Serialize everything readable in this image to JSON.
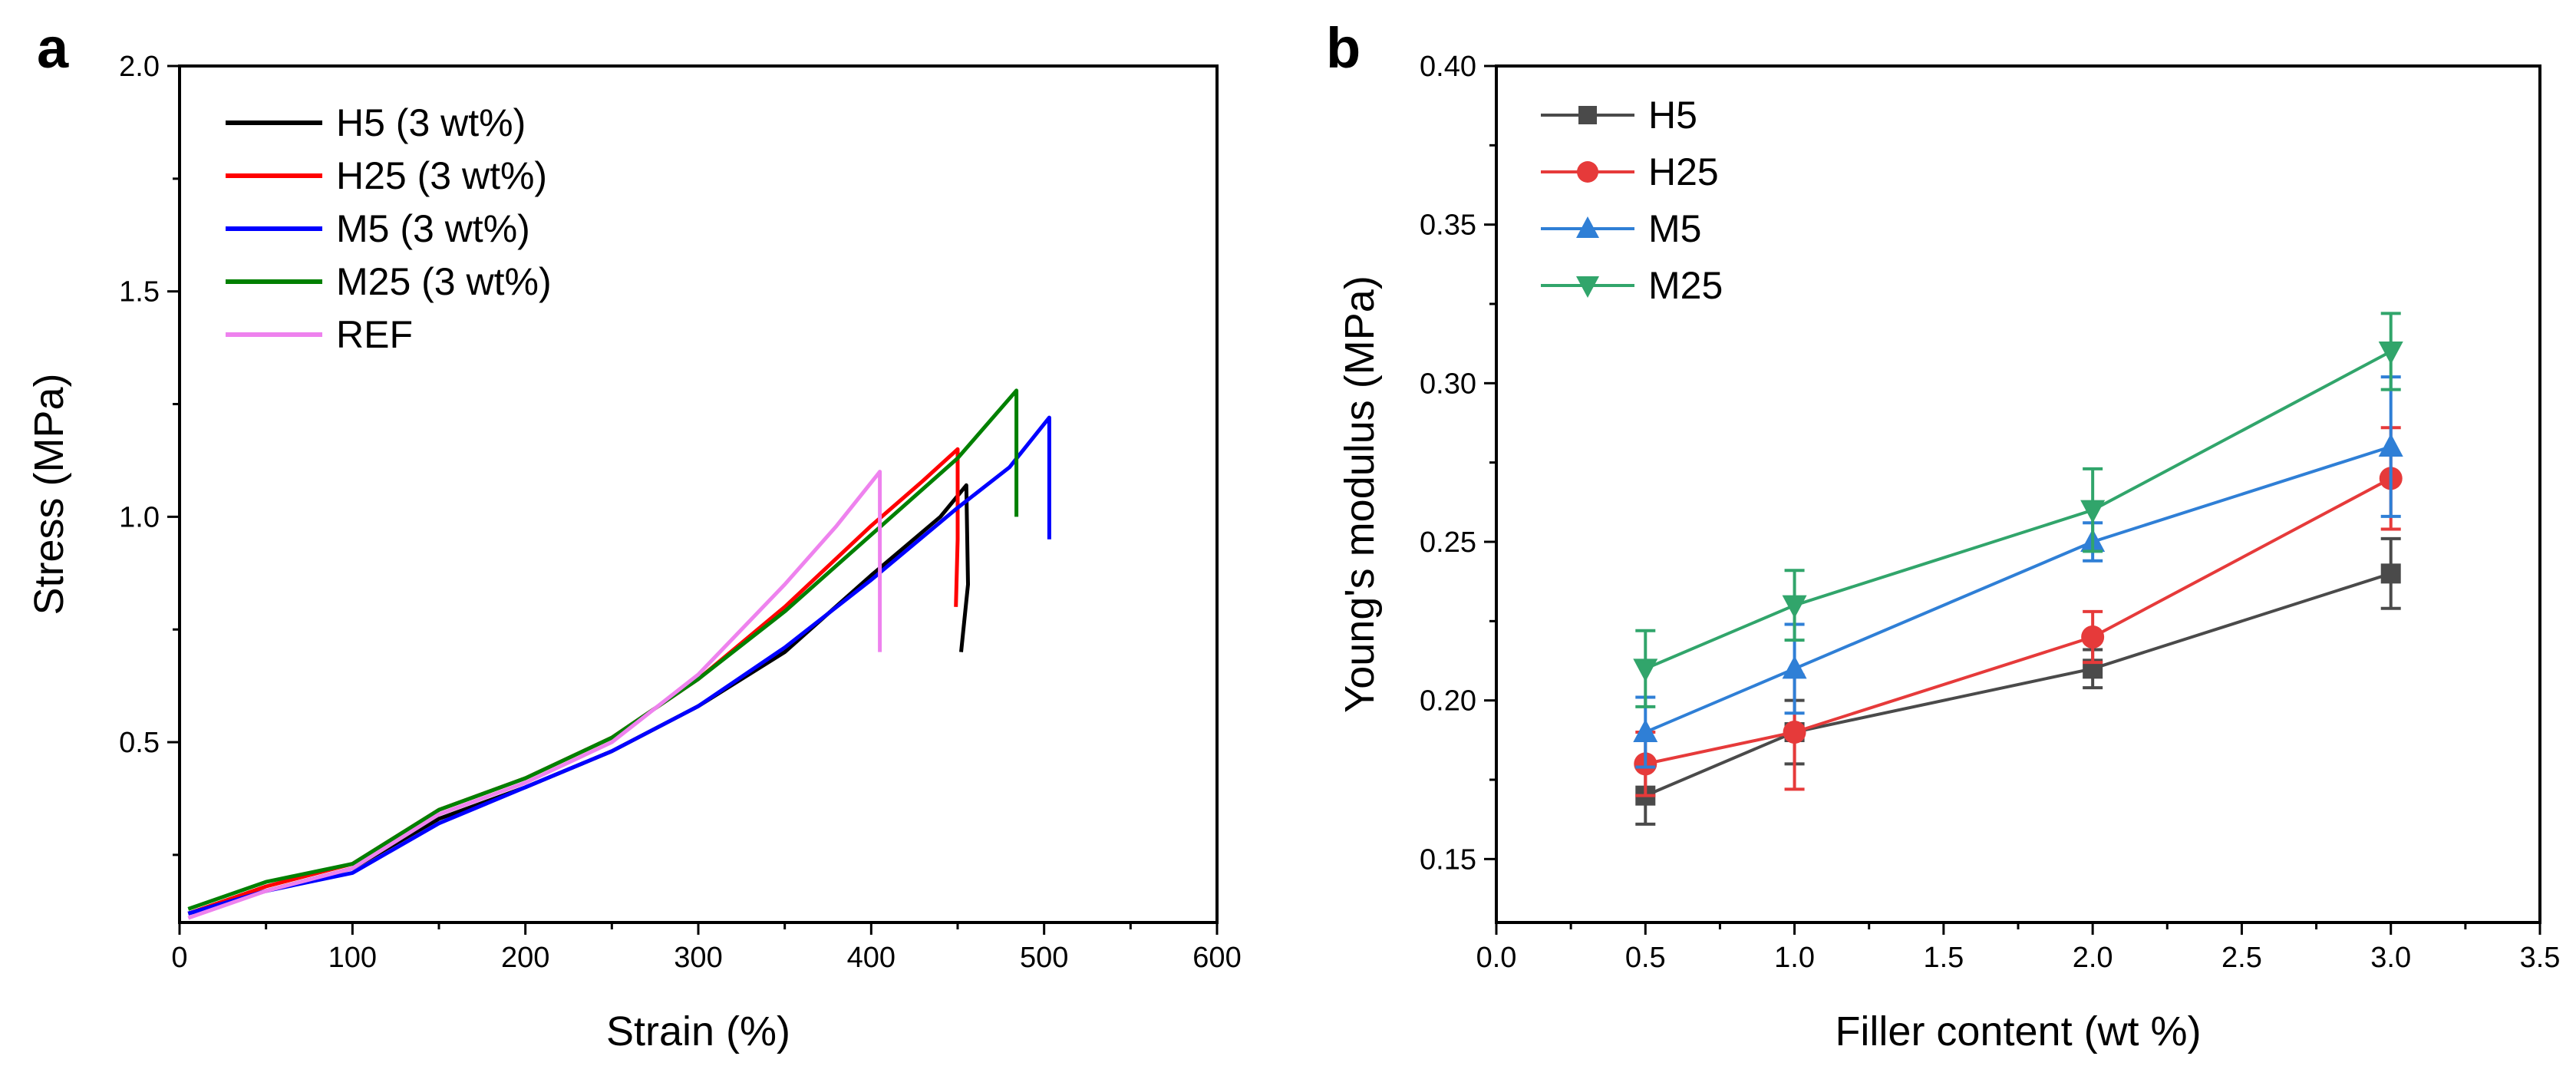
{
  "chart_data": [
    {
      "panel_label": "a",
      "type": "line",
      "xlabel": "Strain (%)",
      "ylabel": "Stress (MPa)",
      "xlim": [
        0,
        600
      ],
      "ylim": [
        0.1,
        2.0
      ],
      "xticks": [
        0,
        100,
        200,
        300,
        400,
        500,
        600
      ],
      "yticks": [
        0.5,
        1.0,
        1.5,
        2.0
      ],
      "ytick_labels": [
        "0.5",
        "1.0",
        "1.5",
        "2.0"
      ],
      "legend_position": "top-left",
      "grid": false,
      "series": [
        {
          "name": "H5 (3 wt%)",
          "color": "#000000",
          "x": [
            5,
            50,
            100,
            150,
            200,
            250,
            300,
            350,
            400,
            440,
            455,
            456,
            452
          ],
          "y": [
            0.12,
            0.17,
            0.22,
            0.33,
            0.4,
            0.48,
            0.58,
            0.7,
            0.87,
            1.0,
            1.07,
            0.85,
            0.7
          ]
        },
        {
          "name": "H25 (3 wt%)",
          "color": "#ff0000",
          "x": [
            5,
            50,
            100,
            150,
            200,
            250,
            300,
            350,
            400,
            430,
            450,
            450,
            449
          ],
          "y": [
            0.12,
            0.18,
            0.23,
            0.35,
            0.42,
            0.51,
            0.64,
            0.8,
            0.98,
            1.08,
            1.15,
            0.95,
            0.8
          ]
        },
        {
          "name": "M5 (3 wt%)",
          "color": "#0000ff",
          "x": [
            5,
            50,
            100,
            150,
            200,
            250,
            300,
            350,
            400,
            450,
            480,
            503,
            503
          ],
          "y": [
            0.12,
            0.17,
            0.21,
            0.32,
            0.4,
            0.48,
            0.58,
            0.71,
            0.86,
            1.02,
            1.11,
            1.22,
            0.95
          ]
        },
        {
          "name": "M25 (3 wt%)",
          "color": "#008000",
          "x": [
            5,
            50,
            100,
            150,
            200,
            250,
            300,
            350,
            400,
            450,
            484,
            484
          ],
          "y": [
            0.13,
            0.19,
            0.23,
            0.35,
            0.42,
            0.51,
            0.64,
            0.79,
            0.96,
            1.13,
            1.28,
            1.0
          ]
        },
        {
          "name": "REF",
          "color": "#ee82ee",
          "x": [
            5,
            50,
            100,
            150,
            200,
            250,
            300,
            350,
            380,
            405,
            405
          ],
          "y": [
            0.11,
            0.17,
            0.22,
            0.34,
            0.41,
            0.5,
            0.65,
            0.85,
            0.98,
            1.1,
            0.7
          ]
        }
      ]
    },
    {
      "panel_label": "b",
      "type": "line",
      "xlabel": "Filler content (wt %)",
      "ylabel": "Young's modulus (MPa)",
      "xlim": [
        0.0,
        3.5
      ],
      "ylim": [
        0.13,
        0.4
      ],
      "xticks": [
        0.0,
        0.5,
        1.0,
        1.5,
        2.0,
        2.5,
        3.0,
        3.5
      ],
      "xtick_labels": [
        "0.0",
        "0.5",
        "1.0",
        "1.5",
        "2.0",
        "2.5",
        "3.0",
        "3.5"
      ],
      "yticks": [
        0.15,
        0.2,
        0.25,
        0.3,
        0.35,
        0.4
      ],
      "ytick_labels": [
        "0.15",
        "0.20",
        "0.25",
        "0.30",
        "0.35",
        "0.40"
      ],
      "legend_position": "top-left",
      "grid": false,
      "x": [
        0.5,
        1.0,
        2.0,
        3.0
      ],
      "series": [
        {
          "name": "H5",
          "color": "#4a4a4a",
          "marker": "square",
          "values": [
            0.17,
            0.19,
            0.21,
            0.24
          ],
          "errors": [
            0.009,
            0.01,
            0.006,
            0.011
          ]
        },
        {
          "name": "H25",
          "color": "#e63a3a",
          "marker": "circle",
          "values": [
            0.18,
            0.19,
            0.22,
            0.27
          ],
          "errors": [
            0.01,
            0.018,
            0.008,
            0.016
          ]
        },
        {
          "name": "M5",
          "color": "#2f7fd6",
          "marker": "triangle-up",
          "values": [
            0.19,
            0.21,
            0.25,
            0.28
          ],
          "errors": [
            0.011,
            0.014,
            0.006,
            0.022
          ]
        },
        {
          "name": "M25",
          "color": "#31a56b",
          "marker": "triangle-down",
          "values": [
            0.21,
            0.23,
            0.26,
            0.31
          ],
          "errors": [
            0.012,
            0.011,
            0.013,
            0.012
          ]
        }
      ]
    }
  ]
}
